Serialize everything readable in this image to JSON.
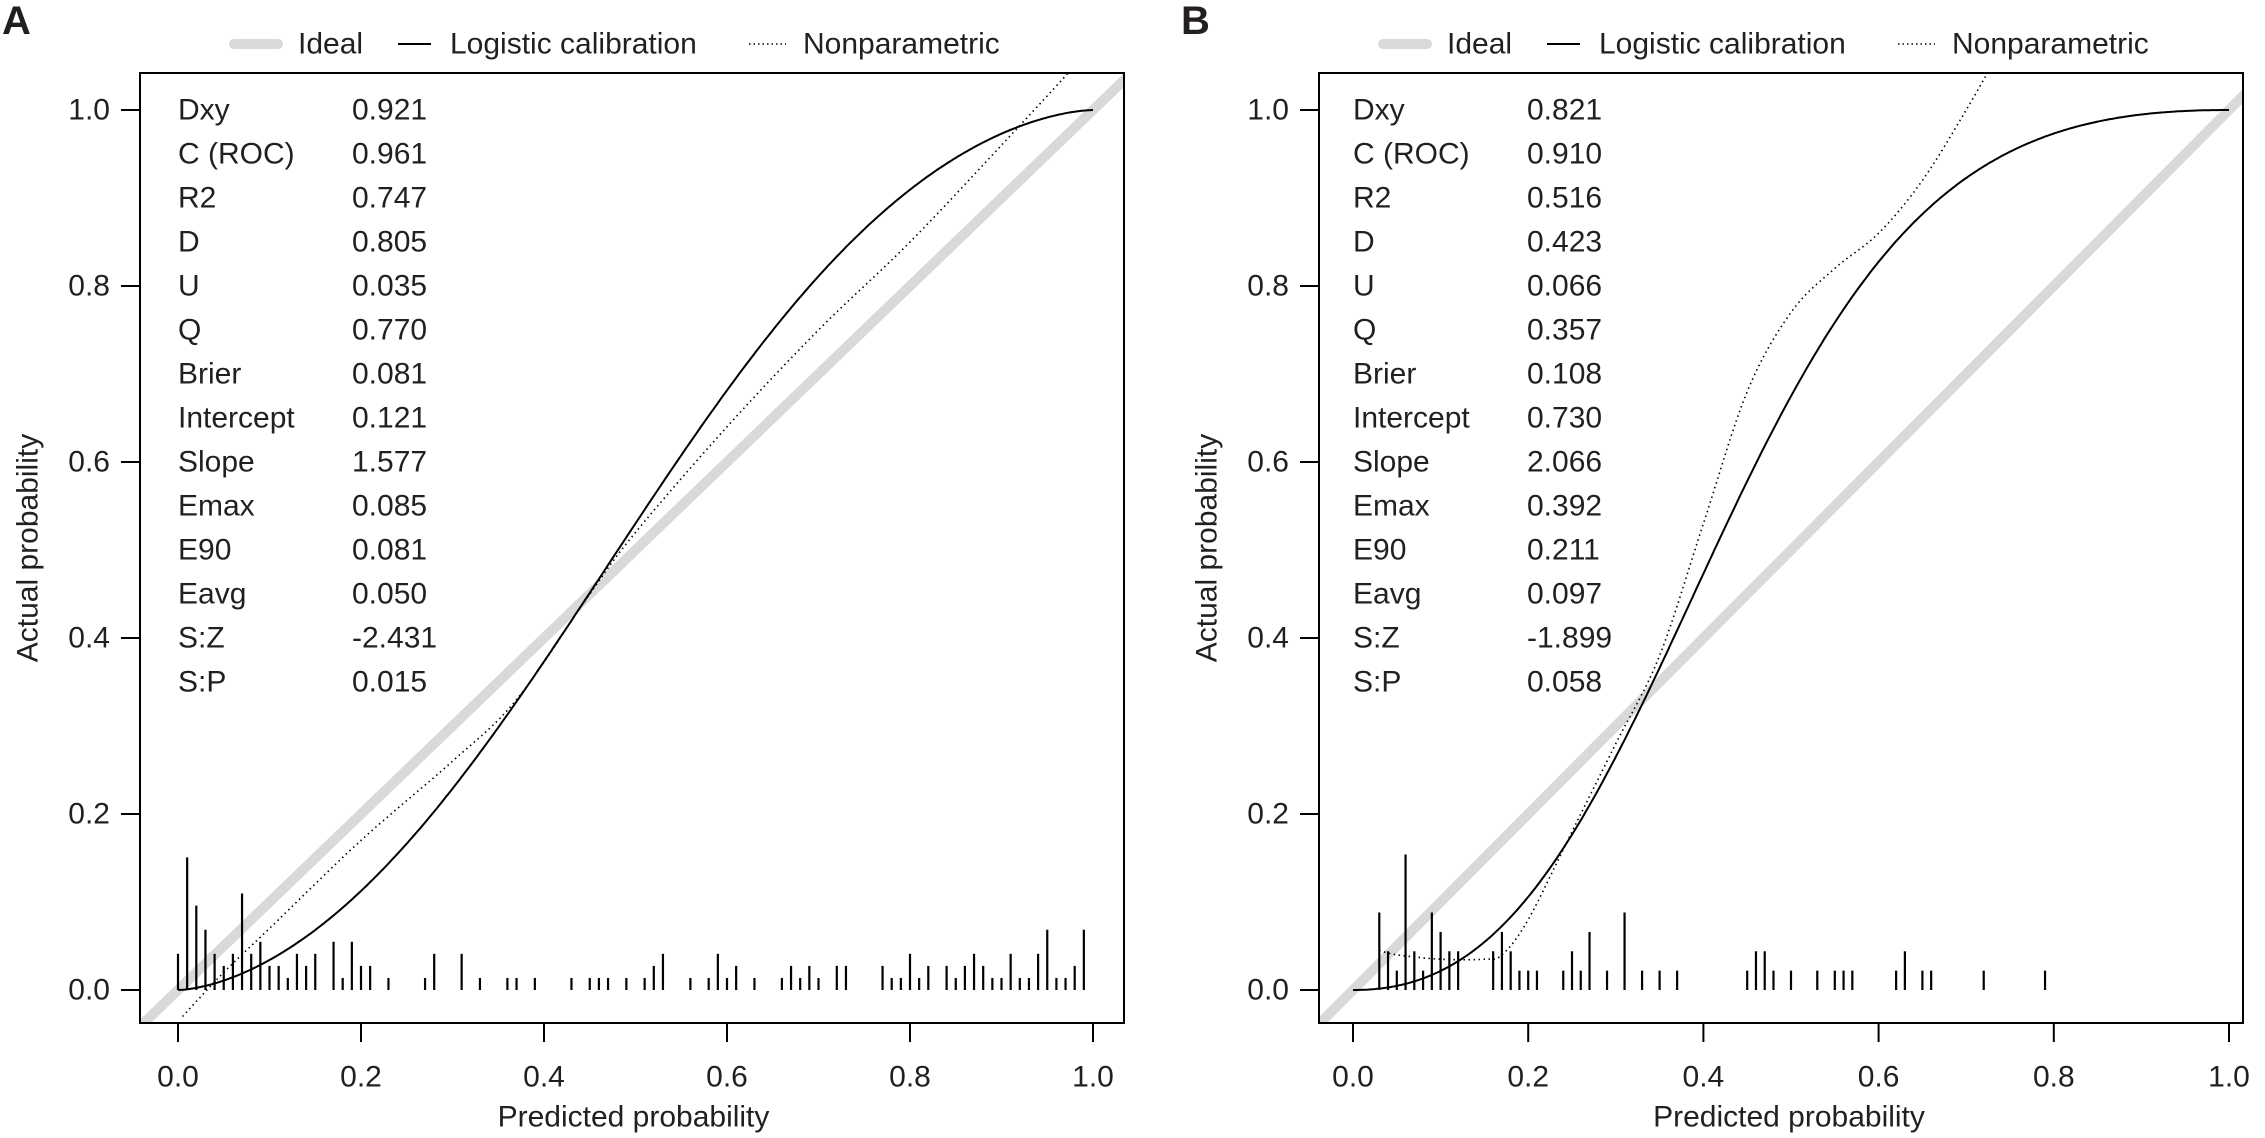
{
  "chart_data": {
    "type": "line",
    "xlabel": "Predicted probability",
    "ylabel": "Actual probability",
    "xlim": [
      -0.04,
      1.035
    ],
    "ylim": [
      -0.037,
      1.042
    ],
    "xticks": [
      "0.0",
      "0.2",
      "0.4",
      "0.6",
      "0.8",
      "1.0"
    ],
    "yticks": [
      "0.0",
      "0.2",
      "0.4",
      "0.6",
      "0.8",
      "1.0"
    ],
    "tick_values": [
      0,
      0.2,
      0.4,
      0.6,
      0.8,
      1.0
    ],
    "grid": false,
    "legend": {
      "placement": "top-outside",
      "entries": [
        "Ideal",
        "Logistic calibration",
        "Nonparametric"
      ]
    },
    "colors": {
      "ideal": "#d9d9d9",
      "line": "#000000",
      "text": "#231f20"
    },
    "panels": [
      {
        "label": "A",
        "stats": [
          [
            "Dxy",
            "0.921"
          ],
          [
            "C (ROC)",
            "0.961"
          ],
          [
            "R2",
            "0.747"
          ],
          [
            "D",
            "0.805"
          ],
          [
            "U",
            "0.035"
          ],
          [
            "Q",
            "0.770"
          ],
          [
            "Brier",
            "0.081"
          ],
          [
            "Intercept",
            "0.121"
          ],
          [
            "Slope",
            "1.577"
          ],
          [
            "Emax",
            "0.085"
          ],
          [
            "E90",
            "0.081"
          ],
          [
            "Eavg",
            "0.050"
          ],
          [
            "S:Z",
            "-2.431"
          ],
          [
            "S:P",
            "0.015"
          ]
        ],
        "logistic": {
          "intercept": 0.121,
          "slope": 1.577,
          "x_range": [
            0,
            1
          ]
        },
        "nonparametric": [
          [
            0.005,
            -0.03
          ],
          [
            0.05,
            0.02
          ],
          [
            0.1,
            0.07
          ],
          [
            0.2,
            0.17
          ],
          [
            0.3,
            0.26
          ],
          [
            0.37,
            0.33
          ],
          [
            0.45,
            0.45
          ],
          [
            0.5,
            0.52
          ],
          [
            0.6,
            0.64
          ],
          [
            0.7,
            0.75
          ],
          [
            0.8,
            0.85
          ],
          [
            0.9,
            0.96
          ],
          [
            0.98,
            1.05
          ]
        ],
        "rug_unit": 0.0137,
        "rug": [
          [
            0.0,
            3
          ],
          [
            0.01,
            11
          ],
          [
            0.02,
            7
          ],
          [
            0.03,
            5
          ],
          [
            0.04,
            3
          ],
          [
            0.05,
            2
          ],
          [
            0.06,
            3
          ],
          [
            0.07,
            8
          ],
          [
            0.08,
            3
          ],
          [
            0.09,
            4
          ],
          [
            0.1,
            2
          ],
          [
            0.11,
            2
          ],
          [
            0.12,
            1
          ],
          [
            0.13,
            3
          ],
          [
            0.14,
            2
          ],
          [
            0.15,
            3
          ],
          [
            0.17,
            4
          ],
          [
            0.18,
            1
          ],
          [
            0.19,
            4
          ],
          [
            0.2,
            2
          ],
          [
            0.21,
            2
          ],
          [
            0.23,
            1
          ],
          [
            0.27,
            1
          ],
          [
            0.28,
            3
          ],
          [
            0.31,
            3
          ],
          [
            0.33,
            1
          ],
          [
            0.36,
            1
          ],
          [
            0.37,
            1
          ],
          [
            0.39,
            1
          ],
          [
            0.43,
            1
          ],
          [
            0.45,
            1
          ],
          [
            0.46,
            1
          ],
          [
            0.47,
            1
          ],
          [
            0.49,
            1
          ],
          [
            0.51,
            1
          ],
          [
            0.52,
            2
          ],
          [
            0.53,
            3
          ],
          [
            0.56,
            1
          ],
          [
            0.58,
            1
          ],
          [
            0.59,
            3
          ],
          [
            0.6,
            1
          ],
          [
            0.61,
            2
          ],
          [
            0.63,
            1
          ],
          [
            0.66,
            1
          ],
          [
            0.67,
            2
          ],
          [
            0.68,
            1
          ],
          [
            0.69,
            2
          ],
          [
            0.7,
            1
          ],
          [
            0.72,
            2
          ],
          [
            0.73,
            2
          ],
          [
            0.77,
            2
          ],
          [
            0.78,
            1
          ],
          [
            0.79,
            1
          ],
          [
            0.8,
            3
          ],
          [
            0.81,
            1
          ],
          [
            0.82,
            2
          ],
          [
            0.84,
            2
          ],
          [
            0.85,
            1
          ],
          [
            0.86,
            2
          ],
          [
            0.87,
            3
          ],
          [
            0.88,
            2
          ],
          [
            0.89,
            1
          ],
          [
            0.9,
            1
          ],
          [
            0.91,
            3
          ],
          [
            0.92,
            1
          ],
          [
            0.93,
            1
          ],
          [
            0.94,
            3
          ],
          [
            0.95,
            5
          ],
          [
            0.96,
            1
          ],
          [
            0.97,
            1
          ],
          [
            0.98,
            2
          ],
          [
            0.99,
            5
          ]
        ]
      },
      {
        "label": "B",
        "stats": [
          [
            "Dxy",
            "0.821"
          ],
          [
            "C (ROC)",
            "0.910"
          ],
          [
            "R2",
            "0.516"
          ],
          [
            "D",
            "0.423"
          ],
          [
            "U",
            "0.066"
          ],
          [
            "Q",
            "0.357"
          ],
          [
            "Brier",
            "0.108"
          ],
          [
            "Intercept",
            "0.730"
          ],
          [
            "Slope",
            "2.066"
          ],
          [
            "Emax",
            "0.392"
          ],
          [
            "E90",
            "0.211"
          ],
          [
            "Eavg",
            "0.097"
          ],
          [
            "S:Z",
            "-1.899"
          ],
          [
            "S:P",
            "0.058"
          ]
        ],
        "logistic": {
          "intercept": 0.73,
          "slope": 2.066,
          "x_range": [
            0,
            1
          ]
        },
        "nonparametric": [
          [
            0.03,
            0.045
          ],
          [
            0.05,
            0.04
          ],
          [
            0.1,
            0.035
          ],
          [
            0.15,
            0.035
          ],
          [
            0.17,
            0.04
          ],
          [
            0.2,
            0.08
          ],
          [
            0.25,
            0.18
          ],
          [
            0.3,
            0.28
          ],
          [
            0.35,
            0.38
          ],
          [
            0.4,
            0.53
          ],
          [
            0.45,
            0.68
          ],
          [
            0.5,
            0.77
          ],
          [
            0.55,
            0.82
          ],
          [
            0.6,
            0.86
          ],
          [
            0.65,
            0.92
          ],
          [
            0.7,
            1.0
          ],
          [
            0.74,
            1.07
          ]
        ],
        "rug_unit": 0.022,
        "rug": [
          [
            0.03,
            4
          ],
          [
            0.04,
            2
          ],
          [
            0.05,
            1
          ],
          [
            0.06,
            7
          ],
          [
            0.07,
            2
          ],
          [
            0.08,
            1
          ],
          [
            0.09,
            4
          ],
          [
            0.1,
            3
          ],
          [
            0.11,
            2
          ],
          [
            0.12,
            2
          ],
          [
            0.16,
            2
          ],
          [
            0.17,
            3
          ],
          [
            0.18,
            2
          ],
          [
            0.19,
            1
          ],
          [
            0.2,
            1
          ],
          [
            0.21,
            1
          ],
          [
            0.24,
            1
          ],
          [
            0.25,
            2
          ],
          [
            0.26,
            1
          ],
          [
            0.27,
            3
          ],
          [
            0.29,
            1
          ],
          [
            0.31,
            4
          ],
          [
            0.33,
            1
          ],
          [
            0.35,
            1
          ],
          [
            0.37,
            1
          ],
          [
            0.45,
            1
          ],
          [
            0.46,
            2
          ],
          [
            0.47,
            2
          ],
          [
            0.48,
            1
          ],
          [
            0.5,
            1
          ],
          [
            0.53,
            1
          ],
          [
            0.55,
            1
          ],
          [
            0.56,
            1
          ],
          [
            0.57,
            1
          ],
          [
            0.62,
            1
          ],
          [
            0.63,
            2
          ],
          [
            0.65,
            1
          ],
          [
            0.66,
            1
          ],
          [
            0.72,
            1
          ],
          [
            0.79,
            1
          ]
        ]
      }
    ]
  }
}
